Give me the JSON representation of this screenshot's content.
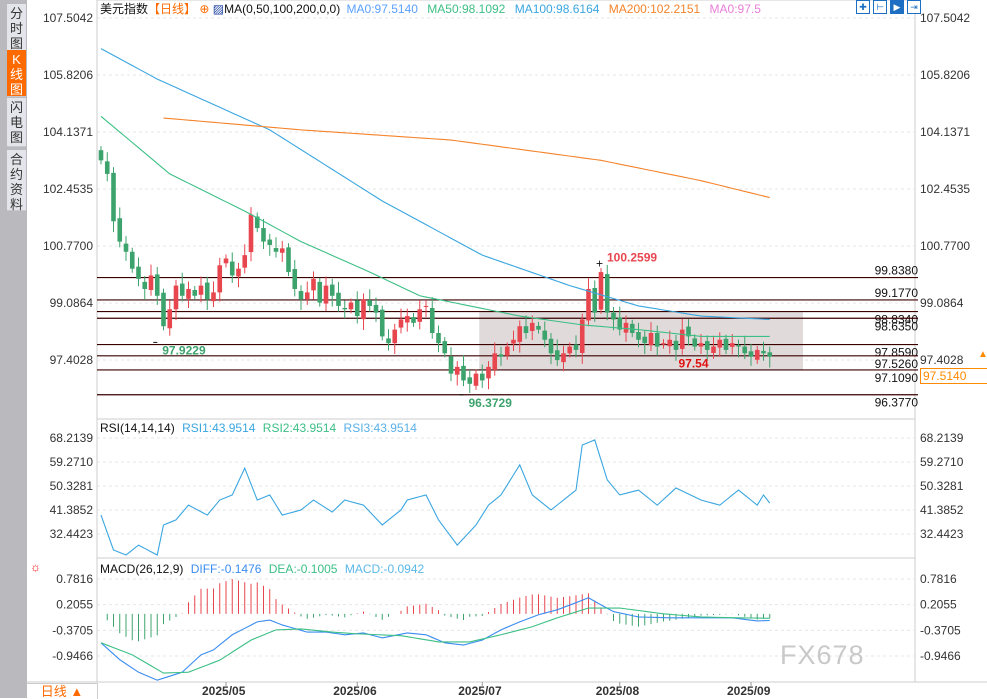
{
  "sidebar": {
    "tabs": [
      {
        "label": "分时图",
        "active": false
      },
      {
        "label": "K线图",
        "active": true
      },
      {
        "label": "闪电图",
        "active": false
      },
      {
        "label": "合约资料",
        "active": false
      }
    ]
  },
  "header": {
    "title": "美元指数",
    "period": "【日线】",
    "ma_name": "MA(0,50,100,200,0,0)",
    "ma0": "MA0:97.5140",
    "ma50": "MA50:98.1092",
    "ma100": "MA100:98.6164",
    "ma200": "MA200:102.2151",
    "ma0b": "MA0:97.5"
  },
  "toolbar": {
    "icons": [
      "crosshair-icon",
      "range-icon",
      "draw-icon",
      "exit-icon"
    ]
  },
  "rsi_header": {
    "name": "RSI(14,14,14)",
    "rsi1": "RSI1:43.9514",
    "rsi2": "RSI2:43.9514",
    "rsi3": "RSI3:43.9514"
  },
  "macd_header": {
    "name": "MACD(26,12,9)",
    "diff": "DIFF:-0.1476",
    "dea": "DEA:-0.1005",
    "macd": "MACD:-0.0942"
  },
  "bottom_tab": "日线 ▲",
  "watermark": "FX678",
  "current_price": "97.5140",
  "colors": {
    "up": "#e8464f",
    "down": "#3da36d",
    "ma50": "#3cbf85",
    "ma100": "#3aa6e0",
    "ma200": "#f5832a",
    "level": "#3a0000",
    "zone": "#dcd3d3",
    "accent": "#ff6a00"
  },
  "chart_data": [
    {
      "type": "candlestick",
      "title": "美元指数 日线",
      "ylim": [
        95.9,
        107.8
      ],
      "y_ticks": [
        "107.5042",
        "105.8206",
        "104.1371",
        "102.4535",
        "100.7700",
        "99.0864",
        "97.4028"
      ],
      "y_tick_values": [
        107.5042,
        105.8206,
        104.1371,
        102.4535,
        100.77,
        99.0864,
        97.4028
      ],
      "x_ticks": [
        {
          "label": "2025/05",
          "bar": 20
        },
        {
          "label": "2025/06",
          "bar": 41
        },
        {
          "label": "2025/07",
          "bar": 61
        },
        {
          "label": "2025/08",
          "bar": 83
        },
        {
          "label": "2025/09",
          "bar": 104
        }
      ],
      "closes": [
        103.3,
        102.9,
        101.5,
        100.9,
        100.6,
        100.1,
        99.8,
        99.5,
        99.9,
        99.3,
        98.4,
        98.9,
        99.6,
        99.3,
        99.5,
        99.3,
        99.6,
        99.2,
        99.4,
        100.2,
        100.4,
        99.9,
        100.1,
        100.5,
        101.7,
        101.3,
        100.9,
        100.8,
        100.6,
        100.7,
        100.0,
        99.5,
        99.2,
        99.4,
        99.8,
        99.1,
        99.6,
        99.3,
        99.0,
        98.9,
        99.1,
        98.7,
        99.2,
        99.0,
        98.8,
        98.1,
        97.9,
        98.3,
        98.6,
        98.7,
        98.5,
        98.9,
        99.0,
        98.2,
        97.9,
        97.6,
        97.0,
        97.2,
        96.8,
        96.7,
        97.0,
        96.8,
        97.2,
        97.6,
        97.5,
        97.8,
        98.0,
        98.4,
        98.2,
        98.5,
        98.3,
        98.0,
        97.6,
        97.4,
        97.6,
        97.8,
        97.7,
        98.6,
        99.5,
        98.8,
        100.0,
        98.8,
        98.6,
        98.3,
        98.5,
        98.2,
        98.0,
        97.9,
        98.2,
        97.8,
        97.9,
        98.0,
        97.7,
        98.3,
        98.1,
        97.8,
        97.9,
        97.7,
        97.8,
        98.0,
        97.7,
        97.9,
        97.8,
        97.6,
        97.5,
        97.7,
        97.6,
        97.5
      ],
      "ma_series": [
        {
          "name": "MA50",
          "points": [
            [
              0,
              104.6
            ],
            [
              11,
              102.9
            ],
            [
              23,
              101.8
            ],
            [
              32,
              100.9
            ],
            [
              43,
              100.0
            ],
            [
              51,
              99.3
            ],
            [
              59,
              99.0
            ],
            [
              67,
              98.7
            ],
            [
              77,
              98.44
            ],
            [
              86,
              98.3
            ],
            [
              96,
              98.1
            ],
            [
              107,
              98.1
            ]
          ]
        },
        {
          "name": "MA100",
          "points": [
            [
              0,
              106.6
            ],
            [
              9,
              105.7
            ],
            [
              27,
              104.2
            ],
            [
              45,
              102.1
            ],
            [
              61,
              100.5
            ],
            [
              75,
              99.6
            ],
            [
              86,
              99.0
            ],
            [
              96,
              98.7
            ],
            [
              107,
              98.6
            ]
          ]
        },
        {
          "name": "MA200",
          "points": [
            [
              10,
              104.55
            ],
            [
              32,
              104.2
            ],
            [
              56,
              103.9
            ],
            [
              80,
              103.3
            ],
            [
              96,
              102.7
            ],
            [
              107,
              102.2
            ]
          ]
        }
      ],
      "levels": [
        "99.8380",
        "99.1770",
        "98.8340",
        "98.6350",
        "97.8590",
        "97.5260",
        "97.1090",
        "96.3770"
      ],
      "zone": {
        "from_bar": 61,
        "top": 98.834,
        "bottom": 97.109
      },
      "annotations": [
        {
          "text": "100.2599",
          "bar": 80,
          "value": 100.2599,
          "kind": "high"
        },
        {
          "text": "97.9229",
          "bar": 9,
          "value": 97.9229,
          "kind": "low"
        },
        {
          "text": "96.3729",
          "bar": 58,
          "value": 96.3729,
          "kind": "low"
        },
        {
          "text": "97.54",
          "bar": 94,
          "value": 97.54,
          "kind": "mark"
        }
      ]
    },
    {
      "type": "line",
      "title": "RSI(14,14,14)",
      "ylim": [
        28.5,
        71
      ],
      "y_ticks": [
        "68.2139",
        "59.2710",
        "50.3281",
        "41.3852",
        "32.4423"
      ],
      "y_tick_values": [
        68.2139,
        59.271,
        50.3281,
        41.3852,
        32.4423
      ],
      "points": [
        [
          0,
          39.5
        ],
        [
          2,
          26.5
        ],
        [
          4,
          24.6
        ],
        [
          6,
          28.3
        ],
        [
          9,
          24.6
        ],
        [
          10,
          35.8
        ],
        [
          12,
          37.7
        ],
        [
          14,
          43.2
        ],
        [
          17,
          39.5
        ],
        [
          19,
          45.1
        ],
        [
          21,
          47.0
        ],
        [
          23,
          57.0
        ],
        [
          25,
          45.1
        ],
        [
          27,
          47.0
        ],
        [
          29,
          39.5
        ],
        [
          32,
          41.4
        ],
        [
          34,
          45.1
        ],
        [
          37,
          40.6
        ],
        [
          39,
          45.1
        ],
        [
          42,
          43.2
        ],
        [
          45,
          35.8
        ],
        [
          48,
          41.4
        ],
        [
          49,
          45.1
        ],
        [
          52,
          47.0
        ],
        [
          54,
          37.7
        ],
        [
          57,
          28.3
        ],
        [
          60,
          35.8
        ],
        [
          62,
          43.2
        ],
        [
          64,
          47.0
        ],
        [
          67,
          58.2
        ],
        [
          69,
          47.0
        ],
        [
          72,
          41.4
        ],
        [
          74,
          45.1
        ],
        [
          76,
          48.8
        ],
        [
          77,
          65.6
        ],
        [
          79,
          67.5
        ],
        [
          81,
          52.6
        ],
        [
          83,
          47.0
        ],
        [
          86,
          48.8
        ],
        [
          89,
          43.2
        ],
        [
          92,
          49.6
        ],
        [
          96,
          45.1
        ],
        [
          99,
          43.2
        ],
        [
          102,
          48.8
        ],
        [
          105,
          43.2
        ],
        [
          106,
          47.0
        ],
        [
          107,
          43.95
        ]
      ]
    },
    {
      "type": "line+bar",
      "title": "MACD(26,12,9)",
      "y_ticks": [
        "0.7816",
        "0.2055",
        "-0.3705",
        "-0.9466"
      ],
      "y_tick_values": [
        0.7816,
        0.2055,
        -0.3705,
        -0.9466
      ],
      "diff": [
        [
          0,
          -0.65
        ],
        [
          3,
          -1.03
        ],
        [
          6,
          -1.31
        ],
        [
          9,
          -1.49
        ],
        [
          13,
          -1.31
        ],
        [
          16,
          -0.92
        ],
        [
          18,
          -0.81
        ],
        [
          21,
          -0.47
        ],
        [
          25,
          -0.18
        ],
        [
          27,
          -0.14
        ],
        [
          29,
          -0.25
        ],
        [
          33,
          -0.41
        ],
        [
          36,
          -0.41
        ],
        [
          39,
          -0.47
        ],
        [
          42,
          -0.43
        ],
        [
          45,
          -0.54
        ],
        [
          49,
          -0.43
        ],
        [
          52,
          -0.47
        ],
        [
          55,
          -0.65
        ],
        [
          58,
          -0.7
        ],
        [
          61,
          -0.59
        ],
        [
          64,
          -0.36
        ],
        [
          67,
          -0.18
        ],
        [
          70,
          -0.02
        ],
        [
          73,
          0.09
        ],
        [
          76,
          0.25
        ],
        [
          78,
          0.36
        ],
        [
          80,
          0.2
        ],
        [
          82,
          0.05
        ],
        [
          86,
          -0.07
        ],
        [
          91,
          -0.09
        ],
        [
          96,
          -0.09
        ],
        [
          101,
          -0.09
        ],
        [
          105,
          -0.16
        ],
        [
          107,
          -0.15
        ]
      ],
      "dea": [
        [
          0,
          -0.65
        ],
        [
          5,
          -0.92
        ],
        [
          10,
          -1.33
        ],
        [
          14,
          -1.31
        ],
        [
          19,
          -1.04
        ],
        [
          24,
          -0.59
        ],
        [
          28,
          -0.36
        ],
        [
          32,
          -0.34
        ],
        [
          37,
          -0.41
        ],
        [
          41,
          -0.45
        ],
        [
          48,
          -0.49
        ],
        [
          54,
          -0.63
        ],
        [
          59,
          -0.63
        ],
        [
          64,
          -0.47
        ],
        [
          69,
          -0.29
        ],
        [
          73,
          -0.09
        ],
        [
          78,
          0.13
        ],
        [
          83,
          0.13
        ],
        [
          90,
          0.0
        ],
        [
          96,
          -0.07
        ],
        [
          102,
          -0.09
        ],
        [
          107,
          -0.1
        ]
      ]
    }
  ]
}
